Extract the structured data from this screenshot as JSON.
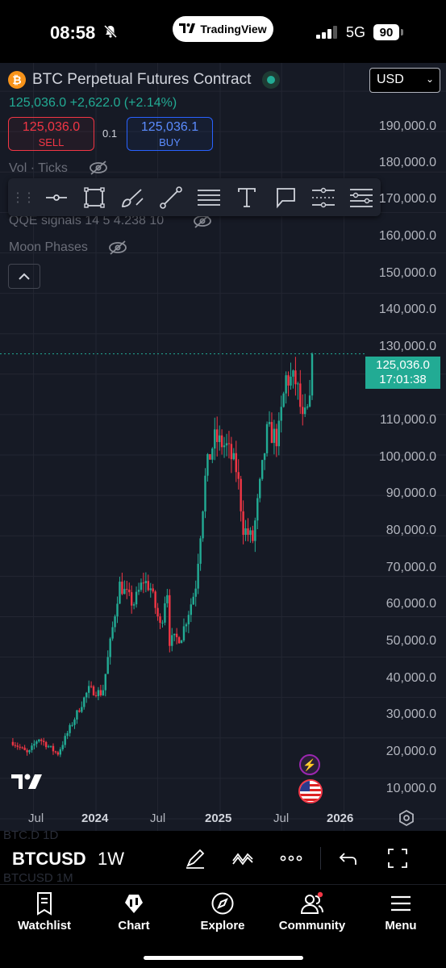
{
  "status_bar": {
    "time": "08:58",
    "app_pill": "TradingView",
    "network": "5G",
    "battery": "90"
  },
  "header": {
    "symbol_title": "BTC Perpetual Futures Contract",
    "price": "125,036.0",
    "change": "+2,622.0",
    "change_pct": "(+2.14%)",
    "price_line": "125,036.0  +2,622.0  (+2.14%)",
    "currency": "USD"
  },
  "trade": {
    "sell_price": "125,036.0",
    "sell_label": "SELL",
    "buy_price": "125,036.1",
    "buy_label": "BUY",
    "spread": "0.1"
  },
  "indicators": [
    {
      "label": "Vol · Ticks"
    },
    {
      "label": "QQE signals 14 5 4.238 10"
    },
    {
      "label": "Moon Phases"
    }
  ],
  "price_axis": {
    "labels": [
      "190,000.0",
      "180,000.0",
      "170,000.0",
      "160,000.0",
      "150,000.0",
      "140,000.0",
      "130,000.0",
      "110,000.0",
      "100,000.0",
      "90,000.0",
      "80,000.0",
      "70,000.0",
      "60,000.0",
      "50,000.0",
      "40,000.0",
      "30,000.0",
      "20,000.0",
      "10,000.0"
    ],
    "last_price": "125,036.0",
    "countdown": "17:01:38"
  },
  "time_axis": {
    "labels": [
      "Jul",
      "2024",
      "Jul",
      "2025",
      "Jul",
      "2026"
    ]
  },
  "colors": {
    "up": "#22ab94",
    "down": "#f23645",
    "background": "#161a25",
    "grid": "#232632"
  },
  "bottom_toolbar": {
    "symbol": "BTCUSD",
    "interval": "1W",
    "ghost_top": "BTC.D         1D",
    "ghost_bottom": "BTCUSD       1M"
  },
  "tabs": [
    {
      "label": "Watchlist",
      "icon": "watchlist-icon"
    },
    {
      "label": "Chart",
      "icon": "chart-icon"
    },
    {
      "label": "Explore",
      "icon": "compass-icon"
    },
    {
      "label": "Community",
      "icon": "community-icon"
    },
    {
      "label": "Menu",
      "icon": "menu-icon"
    }
  ],
  "chart_data": {
    "type": "candlestick",
    "symbol": "BTCUSD",
    "interval": "1W",
    "y_range": [
      7000,
      197000
    ],
    "y_ticks": [
      10000,
      20000,
      30000,
      40000,
      50000,
      60000,
      70000,
      80000,
      90000,
      100000,
      110000,
      120000,
      130000,
      140000,
      150000,
      160000,
      170000,
      180000,
      190000
    ],
    "last_price": 125036.0,
    "anchors": [
      {
        "date": "2023-05-01",
        "price": 29000
      },
      {
        "date": "2023-06-15",
        "price": 26000
      },
      {
        "date": "2023-07-15",
        "price": 30000
      },
      {
        "date": "2023-09-10",
        "price": 26000
      },
      {
        "date": "2023-10-25",
        "price": 34000
      },
      {
        "date": "2023-12-10",
        "price": 42000
      },
      {
        "date": "2024-01-20",
        "price": 41000
      },
      {
        "date": "2024-03-10",
        "price": 68000
      },
      {
        "date": "2024-04-20",
        "price": 63000
      },
      {
        "date": "2024-05-20",
        "price": 69000
      },
      {
        "date": "2024-06-10",
        "price": 67000
      },
      {
        "date": "2024-07-10",
        "price": 57000
      },
      {
        "date": "2024-07-28",
        "price": 68000
      },
      {
        "date": "2024-08-05",
        "price": 54000
      },
      {
        "date": "2024-09-08",
        "price": 55000
      },
      {
        "date": "2024-10-20",
        "price": 67000
      },
      {
        "date": "2024-11-20",
        "price": 96000
      },
      {
        "date": "2024-12-15",
        "price": 104000
      },
      {
        "date": "2025-01-20",
        "price": 102000
      },
      {
        "date": "2025-02-20",
        "price": 96000
      },
      {
        "date": "2025-03-10",
        "price": 82000
      },
      {
        "date": "2025-04-07",
        "price": 79000
      },
      {
        "date": "2025-05-20",
        "price": 106000
      },
      {
        "date": "2025-06-20",
        "price": 104000
      },
      {
        "date": "2025-07-14",
        "price": 119000
      },
      {
        "date": "2025-08-14",
        "price": 118000
      },
      {
        "date": "2025-09-01",
        "price": 108000
      },
      {
        "date": "2025-09-22",
        "price": 112000
      },
      {
        "date": "2025-10-05",
        "price": 125036
      }
    ]
  }
}
